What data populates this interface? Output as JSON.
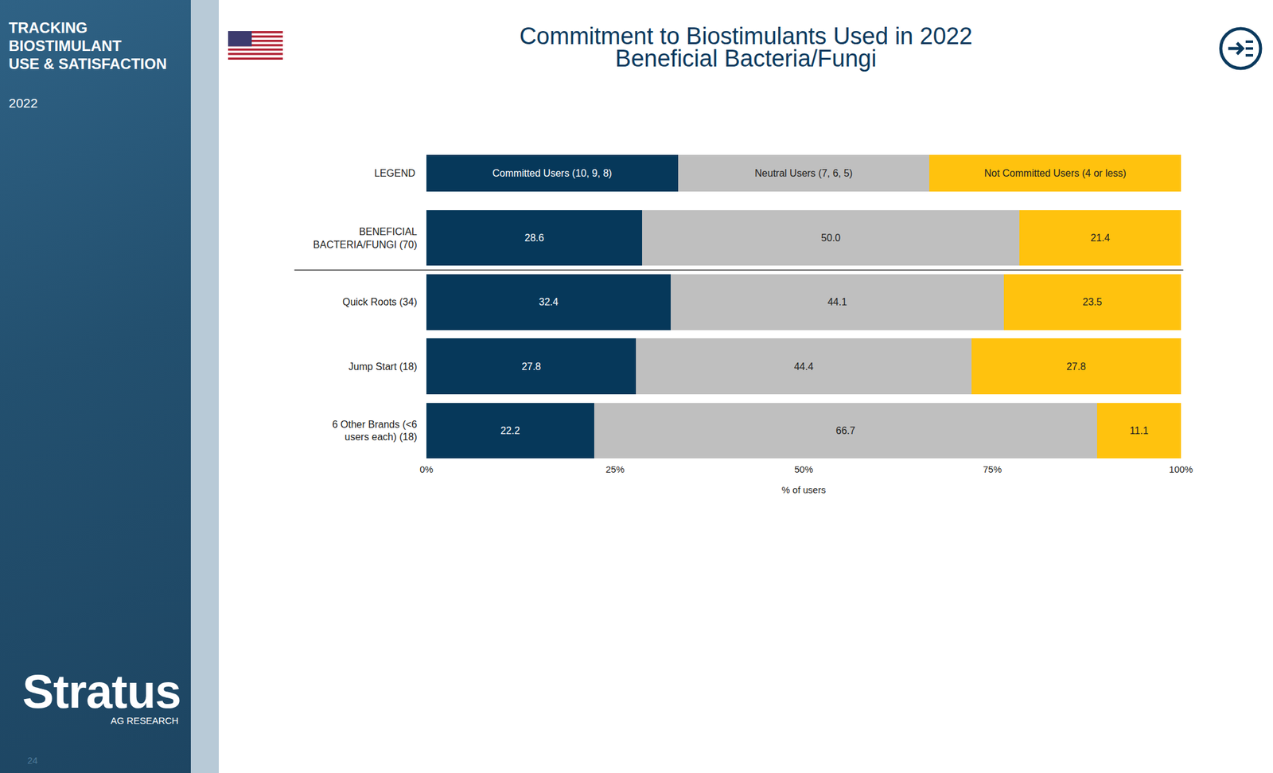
{
  "sidebar": {
    "title_lines": [
      "TRACKING",
      "BIOSTIMULANT",
      "USE & SATISFACTION"
    ],
    "year": "2022",
    "logo": "Stratus",
    "logo_sub": "AG RESEARCH",
    "page": "24"
  },
  "chart_data": {
    "type": "bar",
    "orientation": "horizontal",
    "stacked": true,
    "data_labels": true,
    "title": "Commitment to Biostimulants Used in 2022",
    "subtitle": "Beneficial Bacteria/Fungi",
    "legend_label": "LEGEND",
    "legend": "top",
    "x_label": "% of users",
    "categories": [
      "BENEFICIAL BACTERIA/FUNGI (70)",
      "Quick Roots (34)",
      "Jump Start (18)",
      "6 Other Brands (<6 users each) (18)"
    ],
    "series": [
      {
        "name": "Committed Users (10, 9, 8)",
        "color": "#06385a",
        "values": [
          28.6,
          32.4,
          27.8,
          22.2
        ],
        "value_labels": [
          "28.6",
          "32.4",
          "27.8",
          "22.2"
        ]
      },
      {
        "name": "Neutral Users (7, 6, 5)",
        "color": "#bfbfbf",
        "values": [
          50.0,
          44.1,
          44.4,
          66.7
        ],
        "value_labels": [
          "50.0",
          "44.1",
          "44.4",
          "66.7"
        ]
      },
      {
        "name": "Not Committed Users (4 or less)",
        "color": "#ffc20e",
        "values": [
          21.4,
          23.5,
          27.8,
          11.1
        ],
        "value_labels": [
          "21.4",
          "23.5",
          "27.8",
          "11.1"
        ]
      }
    ],
    "xlim": [
      0,
      100
    ],
    "xticks": [
      {
        "value": 0,
        "label": "0%"
      },
      {
        "value": 25,
        "label": "25%"
      },
      {
        "value": 50,
        "label": "50%"
      },
      {
        "value": 75,
        "label": "75%"
      },
      {
        "value": 100,
        "label": "100%"
      }
    ],
    "grid": false
  }
}
